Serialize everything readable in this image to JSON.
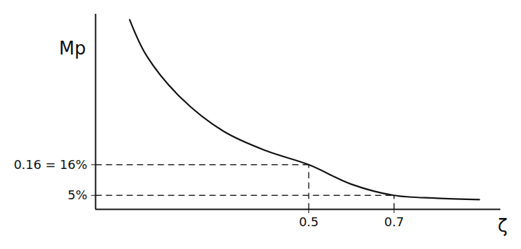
{
  "chart_data": {
    "type": "line",
    "x_label": "ζ",
    "y_label": "Mp",
    "x": [
      0.08,
      0.12,
      0.2,
      0.3,
      0.4,
      0.5,
      0.6,
      0.7,
      0.8,
      0.9
    ],
    "values": [
      68,
      55,
      40,
      28,
      21,
      16,
      9,
      5,
      4,
      3.5
    ],
    "color": "#111111",
    "xlim": [
      0,
      0.95
    ],
    "ylim": [
      0,
      70
    ],
    "xticks": [
      0.5,
      0.7
    ],
    "yticks": [
      {
        "value": 16,
        "label": "0.16 = 16%"
      },
      {
        "value": 5,
        "label": "5%"
      }
    ],
    "grid": false
  }
}
